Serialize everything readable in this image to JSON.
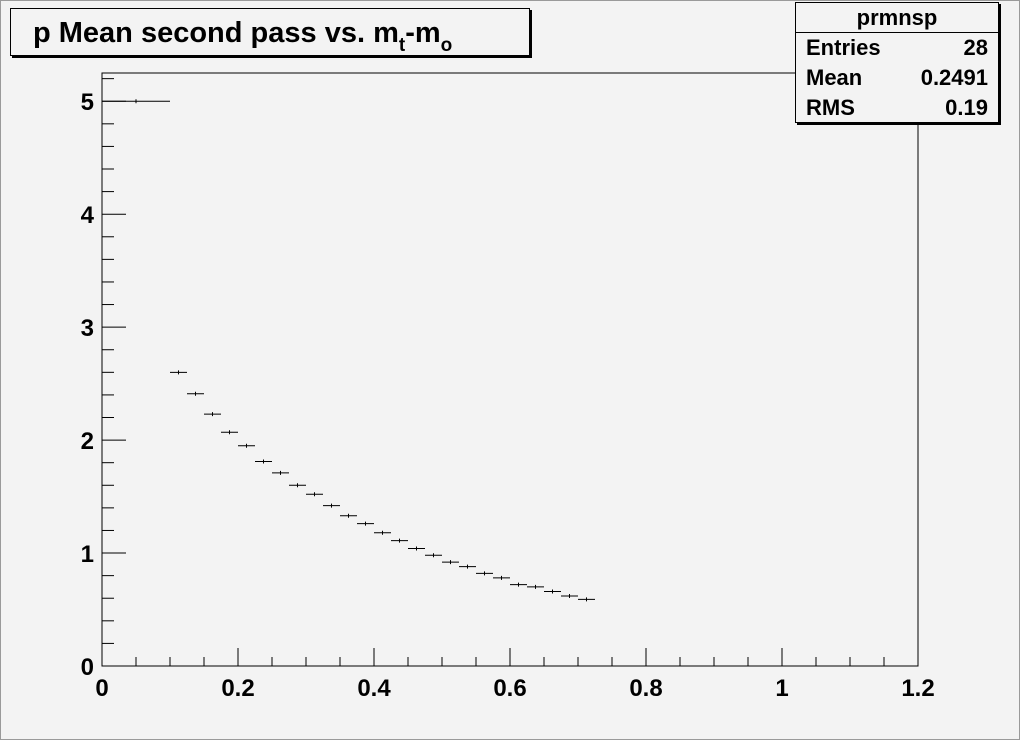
{
  "title": {
    "main": "p Mean second pass vs. m",
    "sub1": "t",
    "mid": "-m",
    "sub2": "o"
  },
  "stats": {
    "name": "prmnsp",
    "rows": [
      {
        "label": "Entries",
        "value": "28"
      },
      {
        "label": "Mean",
        "value": "0.2491"
      },
      {
        "label": "RMS",
        "value": "0.19"
      }
    ]
  },
  "chart_data": {
    "type": "scatter",
    "title": "p Mean second pass vs. m_t-m_o",
    "xlabel": "",
    "ylabel": "",
    "xlim": [
      0,
      1.2
    ],
    "ylim": [
      0,
      5.25
    ],
    "x_ticks": [
      "0",
      "0.2",
      "0.4",
      "0.6",
      "0.8",
      "1",
      "1.2"
    ],
    "y_ticks": [
      "0",
      "1",
      "2",
      "3",
      "4",
      "5"
    ],
    "bin_width": 0.025,
    "series": [
      {
        "x": [
          0.05,
          0.1125,
          0.1375,
          0.1625,
          0.1875,
          0.2125,
          0.2375,
          0.2625,
          0.2875,
          0.3125,
          0.3375,
          0.3625,
          0.3875,
          0.4125,
          0.4375,
          0.4625,
          0.4875,
          0.5125,
          0.5375,
          0.5625,
          0.5875,
          0.6125,
          0.6375,
          0.6625,
          0.6875,
          0.7125
        ],
        "y": [
          5.0,
          2.6,
          2.41,
          2.23,
          2.07,
          1.95,
          1.81,
          1.71,
          1.6,
          1.52,
          1.42,
          1.33,
          1.26,
          1.18,
          1.11,
          1.04,
          0.98,
          0.92,
          0.88,
          0.82,
          0.78,
          0.72,
          0.7,
          0.66,
          0.62,
          0.59
        ],
        "x_err": [
          0.05,
          0.0125,
          0.0125,
          0.0125,
          0.0125,
          0.0125,
          0.0125,
          0.0125,
          0.0125,
          0.0125,
          0.0125,
          0.0125,
          0.0125,
          0.0125,
          0.0125,
          0.0125,
          0.0125,
          0.0125,
          0.0125,
          0.0125,
          0.0125,
          0.0125,
          0.0125,
          0.0125,
          0.0125,
          0.0125
        ]
      }
    ]
  }
}
